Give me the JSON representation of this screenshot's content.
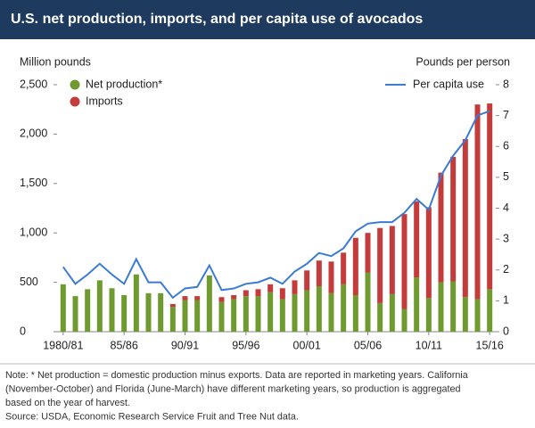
{
  "chart_data": {
    "type": "bar",
    "stacked": true,
    "title": "U.S. net production, imports, and per capita use of avocados",
    "y_label": "Million pounds",
    "y2_label": "Pounds per person",
    "categories": [
      "1980/81",
      null,
      null,
      null,
      null,
      "85/86",
      null,
      null,
      null,
      null,
      "90/91",
      null,
      null,
      null,
      null,
      "95/96",
      null,
      null,
      null,
      null,
      "00/01",
      null,
      null,
      null,
      null,
      "05/06",
      null,
      null,
      null,
      null,
      "10/11",
      null,
      null,
      null,
      null,
      "15/16"
    ],
    "series": [
      {
        "name": "Net production*",
        "color": "#6f9a2f",
        "values": [
          480,
          360,
          430,
          520,
          440,
          370,
          580,
          390,
          390,
          250,
          320,
          320,
          570,
          300,
          330,
          360,
          360,
          400,
          330,
          380,
          420,
          460,
          390,
          480,
          370,
          600,
          290,
          380,
          230,
          550,
          340,
          500,
          510,
          350,
          330,
          430
        ]
      },
      {
        "name": "Imports",
        "color": "#c33b3b",
        "values": [
          0,
          0,
          0,
          0,
          0,
          0,
          0,
          0,
          0,
          30,
          40,
          40,
          0,
          50,
          40,
          60,
          70,
          80,
          110,
          140,
          200,
          260,
          320,
          320,
          580,
          400,
          760,
          690,
          960,
          770,
          920,
          1110,
          1260,
          1600,
          1970,
          1880
        ]
      },
      {
        "name": "Per capita use",
        "color": "#3b7bd3",
        "type": "line",
        "axis": "y2",
        "values": [
          2.1,
          1.55,
          1.85,
          2.2,
          1.85,
          1.55,
          2.35,
          1.6,
          1.6,
          1.1,
          1.4,
          1.45,
          2.15,
          1.35,
          1.4,
          1.55,
          1.6,
          1.75,
          1.55,
          1.95,
          2.2,
          2.55,
          2.45,
          2.7,
          3.25,
          3.5,
          3.55,
          3.55,
          3.85,
          4.3,
          3.95,
          5.05,
          5.7,
          6.2,
          7.0,
          7.15
        ]
      }
    ],
    "ylim": [
      0,
      2500
    ],
    "yticks": [
      0,
      500,
      {
        "value": 1000,
        "label": "1,000"
      },
      {
        "value": 1500,
        "label": "1,500"
      },
      {
        "value": 2000,
        "label": "2,000"
      },
      {
        "value": 2500,
        "label": "2,500"
      }
    ],
    "y2lim": [
      0,
      8
    ],
    "y2ticks": [
      0,
      1,
      2,
      3,
      4,
      5,
      6,
      7,
      8
    ],
    "note": [
      "Note: * Net production = domestic production minus exports. Data are reported in marketing years. California",
      "(November-October) and Florida (June-March) have different marketing years, so production is aggregated",
      "based on the year of harvest."
    ],
    "source": "Source: USDA, Economic Research Service Fruit and Tree Nut data."
  }
}
